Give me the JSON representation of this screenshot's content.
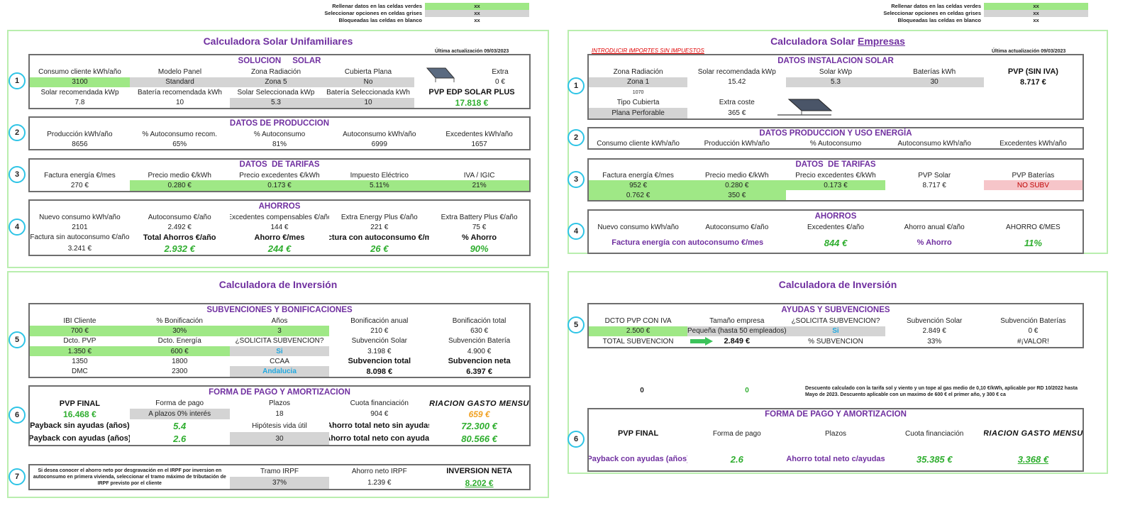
{
  "legends": [
    {
      "rows": [
        [
          "Rellenar datos en las celdas verdes",
          "xx"
        ],
        [
          "Seleccionar opciones en celdas grises",
          "xx"
        ],
        [
          "Bloqueadas las celdas en blanco",
          "xx"
        ]
      ]
    },
    {
      "rows": [
        [
          "Rellenar datos en las celdas verdes",
          "xx"
        ],
        [
          "Seleccionar opciones en celdas grises",
          "xx"
        ],
        [
          "Bloqueadas las celdas en blanco",
          "xx"
        ]
      ]
    }
  ],
  "left": {
    "title": "Calculadora Solar Unifamiliares",
    "date": "Última actualización 09/03/2023",
    "sections": [
      {
        "number": "1",
        "heading": "SOLUCION     SOLAR",
        "rows": [
          [
            "Consumo cliente kWh/año",
            "Modelo Panel",
            "Zona Radiación",
            "Cubierta Plana",
            "Extra"
          ],
          [
            "3100",
            "Standard",
            "Zona 5",
            "No",
            "0 €"
          ],
          [
            "Solar recomendada kWp",
            "Batería recomendada kWh",
            "Solar Seleccionada kWp",
            "Batería Seleccionada kWh",
            "PVP EDP SOLAR PLUS"
          ],
          [
            "7.8",
            "10",
            "5.3",
            "10",
            "17.818 €"
          ]
        ]
      },
      {
        "number": "2",
        "heading": "DATOS DE PRODUCCION",
        "rows": [
          [
            "Producción kWh/año",
            "% Autoconsumo recom.",
            "% Autoconsumo",
            "Autoconsumo kWh/año",
            "Excedentes kWh/año"
          ],
          [
            "8656",
            "65%",
            "81%",
            "6999",
            "1657"
          ]
        ]
      },
      {
        "number": "3",
        "heading": "DATOS  DE TARIFAS",
        "rows": [
          [
            "Factura energía €/mes",
            "Precio medio €/kWh",
            "Precio excedentes €/kWh",
            "Impuesto Eléctrico",
            "IVA / IGIC"
          ],
          [
            "270 €",
            "0.280 €",
            "0.173 €",
            "5.11%",
            "21%"
          ]
        ]
      },
      {
        "number": "4",
        "heading": "AHORROS",
        "rows": [
          [
            "Nuevo consumo kWh/año",
            "Autoconsumo €/año",
            "Excedentes compensables €/año",
            "Extra Energy Plus €/año",
            "Extra Battery Plus €/año"
          ],
          [
            "2101",
            "2.492 €",
            "144 €",
            "221 €",
            "75 €"
          ],
          [
            "Factura sin autoconsumo €/año",
            "Total Ahorros €/año",
            "Ahorro €/mes",
            "Factura con autoconsumo €/mes",
            "% Ahorro"
          ],
          [
            "3.241 €",
            "2.932 €",
            "244 €",
            "26 €",
            "90%"
          ]
        ]
      }
    ]
  },
  "left_investment": {
    "title": "Calculadora de Inversión",
    "sections": [
      {
        "number": "5",
        "heading": "SUBVENCIONES Y BONIFICACIONES",
        "rows": [
          [
            "IBI Cliente",
            "% Bonificación",
            "Años",
            "Bonificación anual",
            "Bonificación total"
          ],
          [
            "700 €",
            "30%",
            "3",
            "210 €",
            "630 €"
          ],
          [
            "Dcto. PVP",
            "Dcto. Energía",
            "¿SOLICITA SUBVENCION?",
            "Subvención Solar",
            "Subvención Batería"
          ],
          [
            "1.350 €",
            "600 €",
            "Si",
            "3.198 €",
            "4.900 €"
          ],
          [
            "1350",
            "1800",
            "CCAA",
            "Subvencion total",
            "Subvencion neta"
          ],
          [
            "DMC",
            "2300",
            "Andalucia",
            "8.098 €",
            "6.397 €"
          ]
        ]
      },
      {
        "number": "6",
        "heading": "FORMA DE PAGO Y AMORTIZACION",
        "rows": [
          [
            "PVP FINAL",
            "Forma de pago",
            "Plazos",
            "Cuota financiación",
            "VARIACION GASTO MENSUAL"
          ],
          [
            "16.468 €",
            "A plazos 0% interés",
            "18",
            "904 €",
            "659 €"
          ],
          [
            "Payback sin ayudas (años)",
            "5.4",
            "Hipótesis vida útil",
            "Ahorro total neto sin ayudas",
            "72.300 €"
          ],
          [
            "Payback con ayudas (años)",
            "2.6",
            "30",
            "Ahorro total neto con ayudas",
            "80.566 €"
          ]
        ]
      },
      {
        "number": "7",
        "note": "Si desea conocer el ahorro neto por desgravación en el IRPF por inversion en autoconsumo en primera vivienda, seleccionar el tramo máximo de tributación de IRPF previsto por el cliente",
        "rows": [
          [
            "Tramo IRPF",
            "Ahorro neto IRPF",
            "INVERSION NETA"
          ],
          [
            "37%",
            "1.239 €",
            "8.202 €"
          ]
        ]
      }
    ]
  },
  "right": {
    "title": "Calculadora Solar",
    "title_emphasis": "Empresas",
    "notice": "INTRODUCIR IMPORTES SIN IMPUESTOS",
    "date": "Última actualización 09/03/2023",
    "sections": [
      {
        "number": "1",
        "heading": "DATOS INSTALACION SOLAR",
        "rows": [
          [
            "Zona Radiación",
            "Solar recomendada kWp",
            "Solar kWp",
            "Baterías kWh",
            "PVP (SIN IVA)"
          ],
          [
            "Zona 1",
            "15.42",
            "5.3",
            "30",
            "8.717 €"
          ],
          [
            "1070"
          ],
          [
            "Tipo Cubierta",
            "Extra coste"
          ],
          [
            "Plana Perforable",
            "365 €"
          ]
        ]
      },
      {
        "number": "2",
        "heading": "DATOS PRODUCCION Y USO ENERGÍA",
        "rows": [
          [
            "Consumo cliente kWh/año",
            "Producción kWh/año",
            "% Autoconsumo",
            "Autoconsumo kWh/año",
            "Excedentes kWh/año"
          ]
        ]
      },
      {
        "number": "3",
        "heading": "DATOS  DE TARIFAS",
        "rows": [
          [
            "Factura energía €/mes",
            "Precio medio €/kWh",
            "Precio excedentes €/kWh",
            "PVP Solar",
            "PVP Baterías"
          ],
          [
            "952 €",
            "0.280 €",
            "0.173 €",
            "8.717 €",
            "NO SUBV"
          ],
          [
            "0.762 €",
            "350 €"
          ]
        ]
      },
      {
        "number": "4",
        "heading": "AHORROS",
        "rows": [
          [
            "Nuevo consumo kWh/año",
            "Autoconsumo €/año",
            "Excedentes €/año",
            "Ahorro anual €/año",
            "AHORRO €/MES"
          ],
          [
            "Factura energía con autoconsumo €/mes",
            "844 €",
            "% Ahorro",
            "11%"
          ]
        ]
      }
    ]
  },
  "right_investment": {
    "title": "Calculadora de Inversión",
    "sections": [
      {
        "number": "5",
        "heading": "AYUDAS Y SUBVENCIONES",
        "rows": [
          [
            "DCTO PVP CON IVA",
            "Tamaño empresa",
            "¿SOLICITA SUBVENCION?",
            "Subvención Solar",
            "Subvención Baterías"
          ],
          [
            "2.500 €",
            "Pequeña (hasta 50 empleados)",
            "Si",
            "2.849 €",
            "0 €"
          ],
          [
            "TOTAL SUBVENCION",
            "2.849 €",
            "% SUBVENCION",
            "33%",
            "#¡VALOR!"
          ]
        ]
      },
      {
        "number": "6",
        "heading": "FORMA DE PAGO Y AMORTIZACION",
        "rows": [
          [
            "PVP FINAL",
            "Forma de pago",
            "Plazos",
            "Cuota financiación",
            "VARIACION GASTO MENSUAL"
          ],
          [
            "Payback con ayudas (años)",
            "2.6",
            "Ahorro total neto c/ayudas",
            "35.385 €",
            "3.368 €"
          ]
        ]
      }
    ],
    "discounts": [
      "0",
      "0"
    ],
    "note": "Descuento calculado con la tarifa sol y viento y un tope al gas medio de 0,10 €/kWh, aplicable por RD 10/2022 hasta Mayo de 2023. Descuento aplicable con un maximo de 600 € el primer año, y 300 € ca"
  }
}
